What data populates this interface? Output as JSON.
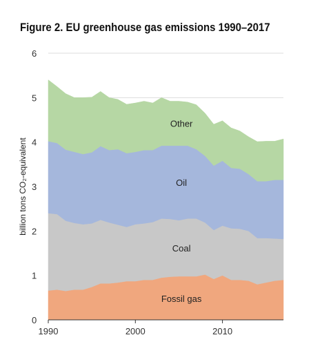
{
  "chart_data": {
    "type": "area",
    "stacked": true,
    "title": "Figure 2. EU greenhouse gas emissions 1990–2017",
    "ylabel": "billion tons CO₂-equivalent",
    "xlabel": "",
    "xlim": [
      1990,
      2017
    ],
    "ylim": [
      0,
      6
    ],
    "x_ticks": [
      "1990",
      "2000",
      "2010"
    ],
    "y_ticks": [
      "0",
      "1",
      "2",
      "3",
      "4",
      "5",
      "6"
    ],
    "grid": true,
    "legend": "none (labels inside areas)",
    "x": [
      1990,
      1991,
      1992,
      1993,
      1994,
      1995,
      1996,
      1997,
      1998,
      1999,
      2000,
      2001,
      2002,
      2003,
      2004,
      2005,
      2006,
      2007,
      2008,
      2009,
      2010,
      2011,
      2012,
      2013,
      2014,
      2015,
      2016,
      2017
    ],
    "series": [
      {
        "name": "Fossil gas",
        "color": "#f0a77e",
        "values": [
          0.66,
          0.68,
          0.65,
          0.68,
          0.68,
          0.74,
          0.82,
          0.82,
          0.84,
          0.87,
          0.87,
          0.9,
          0.9,
          0.95,
          0.97,
          0.98,
          0.98,
          0.98,
          1.02,
          0.92,
          1.0,
          0.9,
          0.9,
          0.88,
          0.8,
          0.84,
          0.88,
          0.9
        ]
      },
      {
        "name": "Coal",
        "color": "#c8c8c8",
        "values": [
          1.74,
          1.7,
          1.58,
          1.5,
          1.47,
          1.43,
          1.43,
          1.37,
          1.3,
          1.22,
          1.28,
          1.27,
          1.3,
          1.33,
          1.3,
          1.26,
          1.3,
          1.3,
          1.17,
          1.1,
          1.12,
          1.16,
          1.15,
          1.12,
          1.04,
          1.0,
          0.95,
          0.92
        ]
      },
      {
        "name": "Oil",
        "color": "#a5b7dc",
        "values": [
          1.62,
          1.6,
          1.6,
          1.6,
          1.58,
          1.6,
          1.66,
          1.63,
          1.7,
          1.66,
          1.63,
          1.65,
          1.62,
          1.64,
          1.65,
          1.68,
          1.64,
          1.56,
          1.5,
          1.45,
          1.46,
          1.36,
          1.35,
          1.28,
          1.28,
          1.28,
          1.32,
          1.33
        ]
      },
      {
        "name": "Other",
        "color": "#b6d7a4",
        "values": [
          1.38,
          1.27,
          1.26,
          1.22,
          1.27,
          1.24,
          1.23,
          1.18,
          1.12,
          1.1,
          1.1,
          1.1,
          1.06,
          1.08,
          1.0,
          1.0,
          0.98,
          1.0,
          0.96,
          0.93,
          0.9,
          0.9,
          0.85,
          0.84,
          0.89,
          0.9,
          0.87,
          0.92
        ]
      }
    ]
  }
}
